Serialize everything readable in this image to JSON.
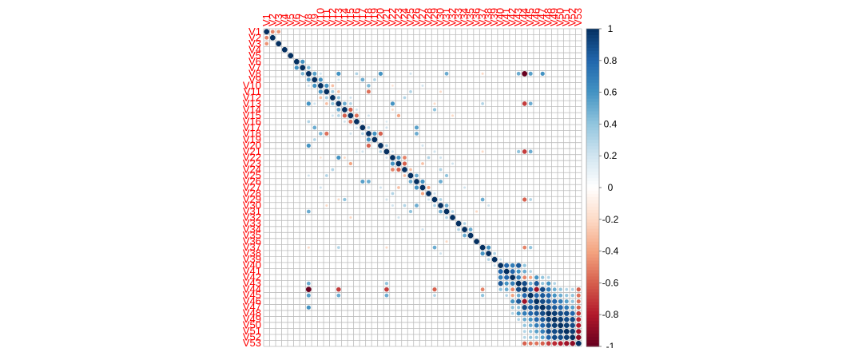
{
  "chart_data": {
    "type": "heatmap",
    "title": "",
    "xlabel": "",
    "ylabel": "",
    "variables": [
      "V1",
      "V2",
      "V3",
      "V4",
      "V5",
      "V6",
      "V7",
      "V8",
      "V9",
      "V10",
      "V11",
      "V12",
      "V13",
      "V14",
      "V15",
      "V16",
      "V17",
      "V18",
      "V19",
      "V20",
      "V21",
      "V22",
      "V23",
      "V24",
      "V25",
      "V26",
      "V27",
      "V28",
      "V29",
      "V30",
      "V31",
      "V32",
      "V33",
      "V34",
      "V35",
      "V36",
      "V37",
      "V38",
      "V39",
      "V40",
      "V41",
      "V42",
      "V43",
      "V44",
      "V45",
      "V46",
      "V47",
      "V48",
      "V49",
      "V50",
      "V51",
      "V52",
      "V53"
    ],
    "value_range": [
      -1,
      1
    ],
    "colorbar": {
      "ticks": [
        "1",
        "0.8",
        "0.6",
        "0.4",
        "0.2",
        "0",
        "-0.2",
        "-0.4",
        "-0.6",
        "-0.8",
        "-1"
      ],
      "colors": {
        "negative": "#67001f",
        "neutral": "#ffffff",
        "positive": "#053061"
      }
    },
    "grid": true,
    "glyph": "circle",
    "cells": [
      [
        0,
        1,
        -0.5
      ],
      [
        0,
        2,
        -0.45
      ],
      [
        5,
        6,
        0.6
      ],
      [
        6,
        7,
        0.45
      ],
      [
        7,
        8,
        0.55
      ],
      [
        7,
        9,
        0.2
      ],
      [
        7,
        12,
        0.6
      ],
      [
        7,
        15,
        0.3
      ],
      [
        7,
        19,
        0.6
      ],
      [
        7,
        24,
        0.2
      ],
      [
        7,
        30,
        0.5
      ],
      [
        7,
        36,
        -0.2
      ],
      [
        7,
        42,
        0.5
      ],
      [
        7,
        43,
        -1.0
      ],
      [
        7,
        44,
        0.55
      ],
      [
        7,
        46,
        0.6
      ],
      [
        8,
        9,
        0.6
      ],
      [
        8,
        12,
        0.2
      ],
      [
        8,
        16,
        0.5
      ],
      [
        8,
        18,
        0.3
      ],
      [
        9,
        10,
        0.6
      ],
      [
        9,
        11,
        -0.3
      ],
      [
        9,
        17,
        0.45
      ],
      [
        9,
        21,
        -0.15
      ],
      [
        9,
        26,
        0.2
      ],
      [
        10,
        11,
        0.35
      ],
      [
        10,
        12,
        -0.3
      ],
      [
        10,
        17,
        -0.55
      ],
      [
        10,
        24,
        0.3
      ],
      [
        10,
        29,
        -0.2
      ],
      [
        11,
        12,
        0.4
      ],
      [
        11,
        14,
        0.2
      ],
      [
        11,
        23,
        0.3
      ],
      [
        12,
        13,
        0.5
      ],
      [
        12,
        14,
        0.3
      ],
      [
        12,
        21,
        0.6
      ],
      [
        12,
        28,
        -0.2
      ],
      [
        12,
        36,
        0.3
      ],
      [
        12,
        43,
        -0.7
      ],
      [
        12,
        44,
        0.5
      ],
      [
        13,
        14,
        -0.6
      ],
      [
        13,
        15,
        0.2
      ],
      [
        13,
        21,
        -0.2
      ],
      [
        13,
        28,
        0.4
      ],
      [
        14,
        15,
        -0.55
      ],
      [
        14,
        17,
        0.2
      ],
      [
        14,
        22,
        -0.4
      ],
      [
        14,
        31,
        -0.2
      ],
      [
        15,
        16,
        0.2
      ],
      [
        15,
        20,
        0.15
      ],
      [
        16,
        17,
        0.3
      ],
      [
        16,
        20,
        0.2
      ],
      [
        16,
        25,
        0.55
      ],
      [
        17,
        18,
        0.6
      ],
      [
        17,
        19,
        -0.6
      ],
      [
        17,
        25,
        0.5
      ],
      [
        19,
        20,
        0.3
      ],
      [
        19,
        26,
        0.2
      ],
      [
        20,
        21,
        0.2
      ],
      [
        20,
        28,
        0.2
      ],
      [
        20,
        36,
        -0.2
      ],
      [
        20,
        42,
        0.4
      ],
      [
        20,
        43,
        -0.7
      ],
      [
        20,
        44,
        0.5
      ],
      [
        21,
        22,
        0.6
      ],
      [
        21,
        23,
        -0.5
      ],
      [
        21,
        27,
        0.3
      ],
      [
        21,
        29,
        0.2
      ],
      [
        22,
        23,
        -0.6
      ],
      [
        22,
        26,
        -0.3
      ],
      [
        22,
        31,
        0.2
      ],
      [
        23,
        24,
        -0.3
      ],
      [
        23,
        29,
        0.3
      ],
      [
        24,
        25,
        0.5
      ],
      [
        24,
        30,
        0.4
      ],
      [
        25,
        26,
        0.6
      ],
      [
        25,
        29,
        0.5
      ],
      [
        26,
        27,
        -0.4
      ],
      [
        26,
        33,
        0.2
      ],
      [
        27,
        28,
        0.2
      ],
      [
        28,
        29,
        0.3
      ],
      [
        28,
        36,
        0.5
      ],
      [
        28,
        43,
        -0.6
      ],
      [
        28,
        44,
        0.3
      ],
      [
        29,
        30,
        0.5
      ],
      [
        29,
        37,
        0.2
      ],
      [
        30,
        31,
        0.3
      ],
      [
        30,
        35,
        -0.2
      ],
      [
        32,
        33,
        0.3
      ],
      [
        33,
        34,
        0.5
      ],
      [
        36,
        37,
        0.6
      ],
      [
        36,
        43,
        -0.5
      ],
      [
        36,
        44,
        0.4
      ],
      [
        37,
        38,
        0.3
      ],
      [
        38,
        39,
        0.2
      ],
      [
        39,
        40,
        0.8
      ],
      [
        39,
        41,
        0.7
      ],
      [
        39,
        42,
        0.85
      ],
      [
        39,
        43,
        0.4
      ],
      [
        40,
        41,
        0.8
      ],
      [
        40,
        42,
        0.6
      ],
      [
        40,
        43,
        0.5
      ],
      [
        40,
        44,
        0.3
      ],
      [
        41,
        42,
        0.7
      ],
      [
        41,
        43,
        -0.5
      ],
      [
        41,
        44,
        -0.4
      ],
      [
        41,
        45,
        0.6
      ],
      [
        41,
        46,
        0.4
      ],
      [
        41,
        47,
        0.3
      ],
      [
        42,
        43,
        0.9
      ],
      [
        42,
        44,
        0.5
      ],
      [
        42,
        45,
        0.85
      ],
      [
        42,
        46,
        0.4
      ],
      [
        42,
        47,
        0.6
      ],
      [
        42,
        48,
        0.3
      ],
      [
        43,
        44,
        0.8
      ],
      [
        43,
        45,
        -0.85
      ],
      [
        43,
        46,
        0.9
      ],
      [
        43,
        47,
        0.7
      ],
      [
        43,
        48,
        0.5
      ],
      [
        43,
        49,
        0.4
      ],
      [
        43,
        50,
        0.3
      ],
      [
        43,
        51,
        0.3
      ],
      [
        43,
        52,
        -0.6
      ],
      [
        44,
        45,
        0.8
      ],
      [
        44,
        46,
        0.85
      ],
      [
        44,
        47,
        0.8
      ],
      [
        44,
        48,
        0.6
      ],
      [
        44,
        49,
        0.5
      ],
      [
        44,
        50,
        0.4
      ],
      [
        44,
        51,
        0.4
      ],
      [
        44,
        52,
        -0.55
      ],
      [
        45,
        46,
        0.9
      ],
      [
        45,
        47,
        0.85
      ],
      [
        45,
        48,
        0.8
      ],
      [
        45,
        49,
        0.7
      ],
      [
        45,
        50,
        0.55
      ],
      [
        45,
        51,
        0.4
      ],
      [
        45,
        52,
        -0.55
      ],
      [
        46,
        47,
        0.9
      ],
      [
        46,
        48,
        0.85
      ],
      [
        46,
        49,
        0.8
      ],
      [
        46,
        50,
        0.7
      ],
      [
        46,
        51,
        0.55
      ],
      [
        46,
        52,
        -0.6
      ],
      [
        47,
        48,
        0.95
      ],
      [
        47,
        49,
        0.9
      ],
      [
        47,
        50,
        0.9
      ],
      [
        47,
        51,
        0.8
      ],
      [
        47,
        52,
        -0.7
      ],
      [
        48,
        49,
        0.95
      ],
      [
        48,
        50,
        0.9
      ],
      [
        48,
        51,
        0.9
      ],
      [
        48,
        52,
        -0.75
      ],
      [
        49,
        50,
        0.95
      ],
      [
        49,
        51,
        0.9
      ],
      [
        49,
        52,
        -0.8
      ],
      [
        50,
        51,
        0.95
      ],
      [
        50,
        52,
        -0.85
      ],
      [
        51,
        52,
        -0.9
      ]
    ]
  }
}
